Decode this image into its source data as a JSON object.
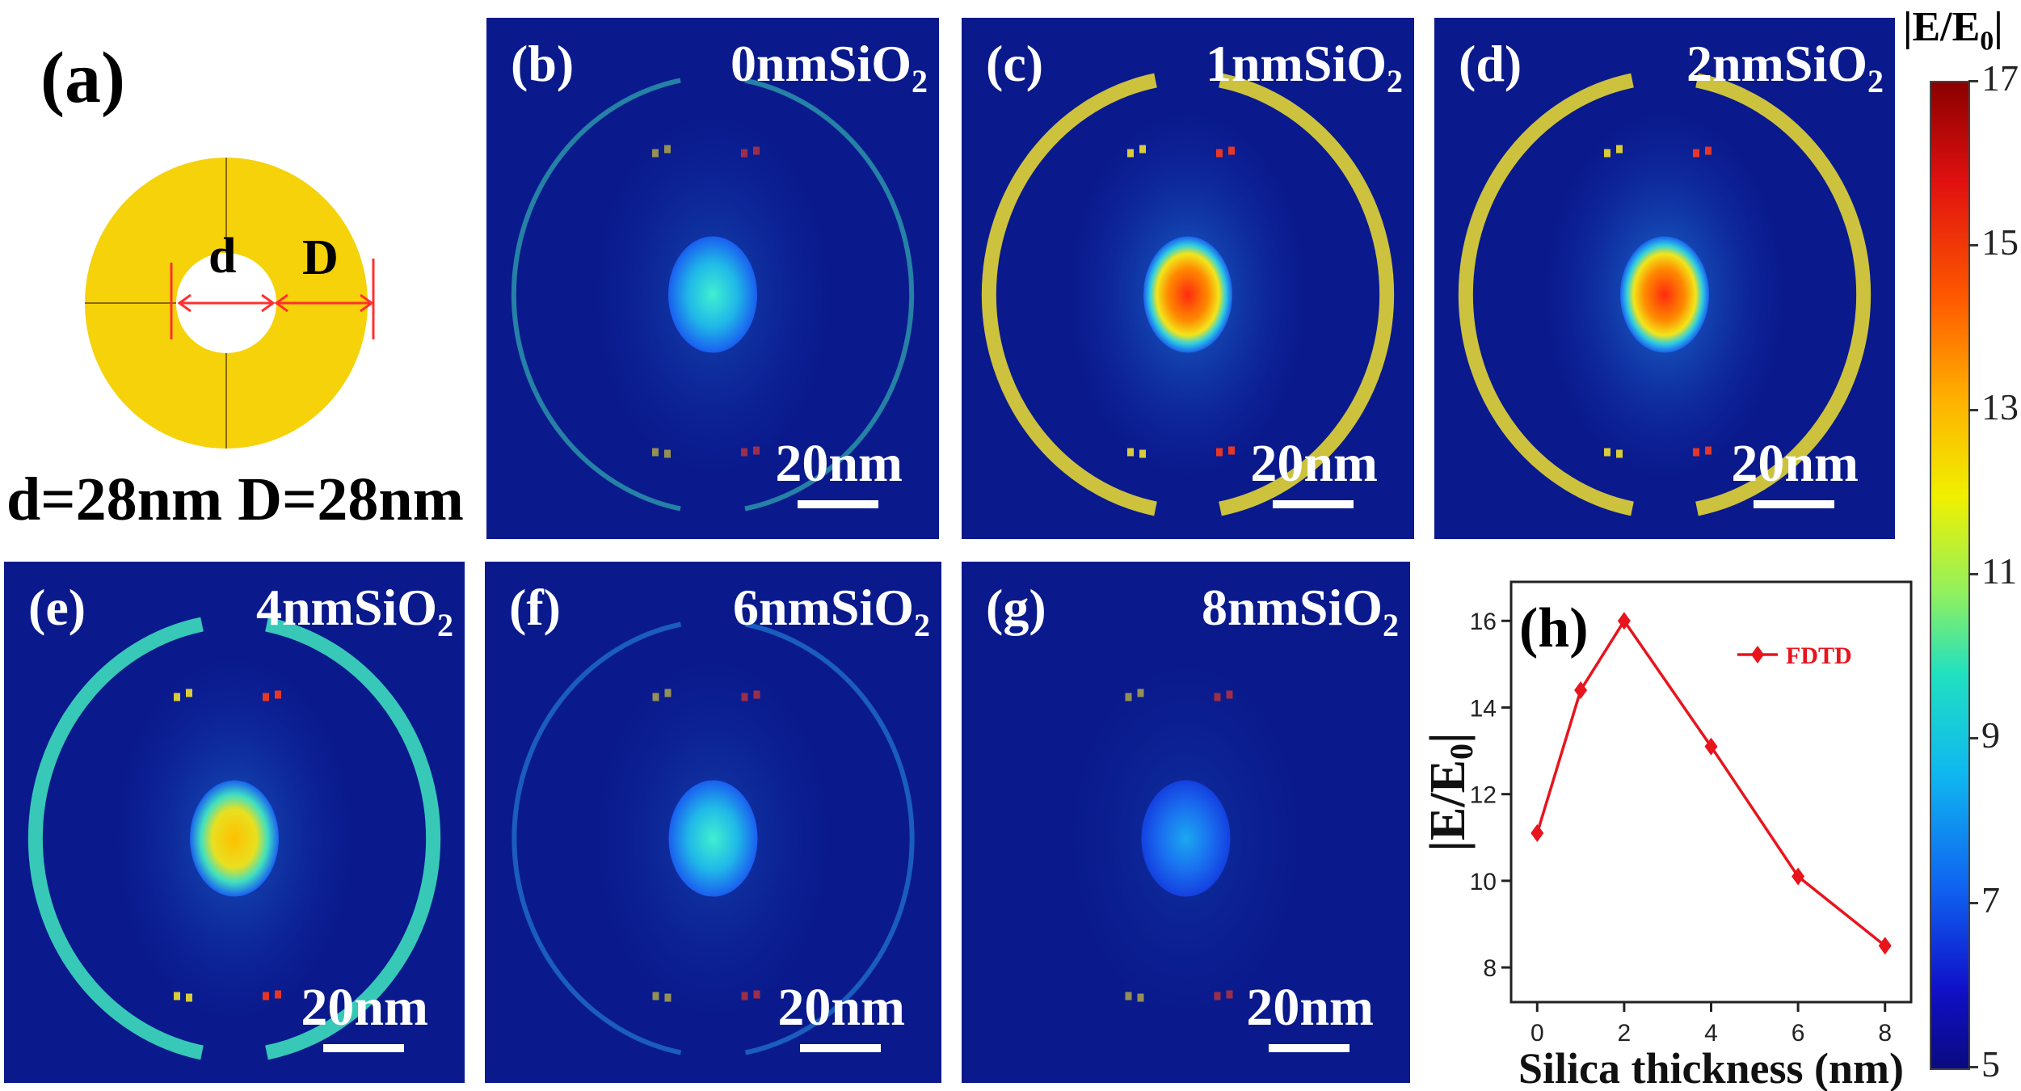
{
  "figure": {
    "panel_a": {
      "label": "(a)",
      "inner_label": "d",
      "outer_label": "D",
      "caption": "d=28nm D=28nm",
      "ring_color": "#f5d20a"
    },
    "panels": [
      {
        "id": "b",
        "label": "(b)",
        "thickness": "0",
        "title_main": "0nmSiO",
        "title_sub": "2",
        "scale": "20nm",
        "intensity": 0.55
      },
      {
        "id": "c",
        "label": "(c)",
        "thickness": "1",
        "title_main": "1nmSiO",
        "title_sub": "2",
        "scale": "20nm",
        "intensity": 0.9
      },
      {
        "id": "d",
        "label": "(d)",
        "thickness": "2",
        "title_main": "2nmSiO",
        "title_sub": "2",
        "scale": "20nm",
        "intensity": 1.0
      },
      {
        "id": "e",
        "label": "(e)",
        "thickness": "4",
        "title_main": "4nmSiO",
        "title_sub": "2",
        "scale": "20nm",
        "intensity": 0.7
      },
      {
        "id": "f",
        "label": "(f)",
        "thickness": "6",
        "title_main": "6nmSiO",
        "title_sub": "2",
        "scale": "20nm",
        "intensity": 0.45
      },
      {
        "id": "g",
        "label": "(g)",
        "thickness": "8",
        "title_main": "8nmSiO",
        "title_sub": "2",
        "scale": "20nm",
        "intensity": 0.3
      }
    ],
    "colorbar": {
      "title": "|E/E",
      "title_sub": "0",
      "title_end": "|",
      "ticks": [
        "17",
        "15",
        "13",
        "11",
        "9",
        "7",
        "5"
      ]
    },
    "colors": {
      "background": "#0a1a8c",
      "series": "#e8141e"
    }
  },
  "chart_data": {
    "type": "line",
    "label": "(h)",
    "x": [
      0,
      1,
      2,
      4,
      6,
      8
    ],
    "series": [
      {
        "name": "FDTD",
        "values": [
          11.1,
          14.4,
          16.0,
          13.1,
          10.1,
          8.5
        ]
      }
    ],
    "xlabel": "Silica thickness (nm)",
    "ylabel": "|E/E0|",
    "ylabel_main": "|E/E",
    "ylabel_sub": "0",
    "ylabel_end": "|",
    "xticks": [
      "0",
      "2",
      "4",
      "6",
      "8"
    ],
    "yticks": [
      "8",
      "10",
      "12",
      "14",
      "16"
    ],
    "xlim": [
      -0.6,
      8.6
    ],
    "ylim": [
      7.2,
      16.9
    ],
    "legend": "top-right"
  }
}
